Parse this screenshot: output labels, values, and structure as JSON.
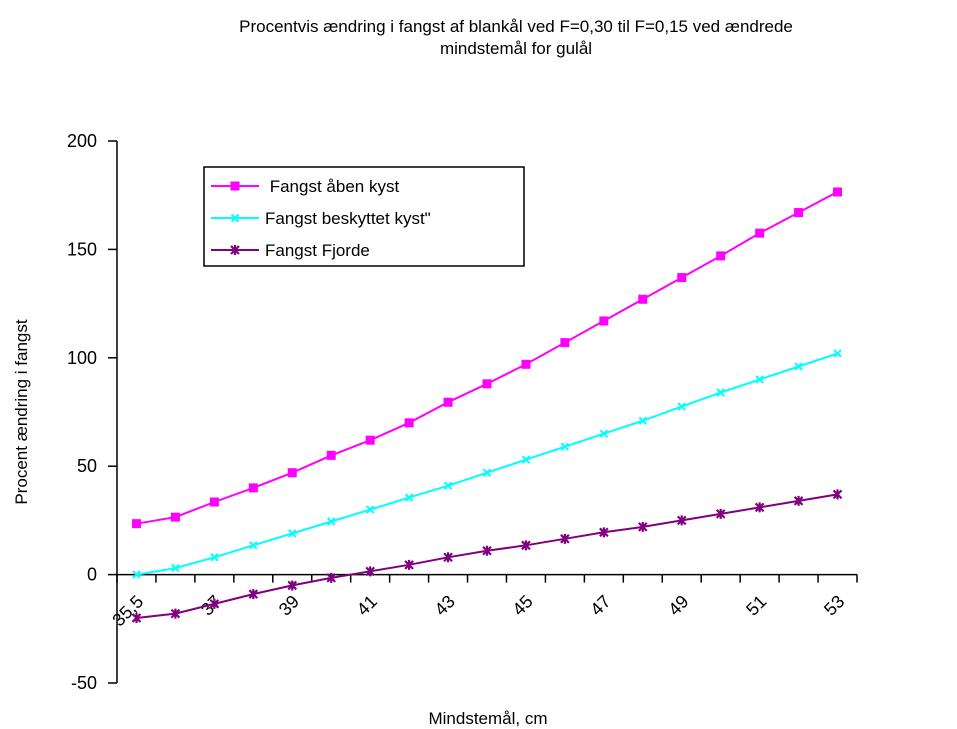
{
  "chart_data": {
    "type": "line",
    "title_lines": [
      "Procentvis ændring i fangst af blankål ved F=0,30 til F=0,15 ved ændrede",
      "mindstemål for gulål"
    ],
    "xlabel": "Mindstemål, cm",
    "ylabel": "Procent ændring i fangst",
    "ylim": [
      -50,
      200
    ],
    "yticks": [
      -50,
      0,
      50,
      100,
      150,
      200
    ],
    "x": [
      35.5,
      36,
      37,
      38,
      39,
      40,
      41,
      42,
      43,
      44,
      45,
      46,
      47,
      48,
      49,
      50,
      51,
      52,
      53
    ],
    "xtick_labels": [
      "35,5",
      "37",
      "39",
      "41",
      "43",
      "45",
      "47",
      "49",
      "51",
      "53"
    ],
    "legend_position": "top-left",
    "series": [
      {
        "name": " Fangst åben kyst",
        "color": "#ff00ff",
        "marker": "square",
        "values": [
          23.5,
          26.5,
          33.5,
          40,
          47,
          55,
          62,
          70,
          79.5,
          88,
          97,
          107,
          117,
          127,
          137,
          147,
          157.5,
          167,
          176.5
        ]
      },
      {
        "name": "Fangst beskyttet kyst\"",
        "color": "#00ffff",
        "marker": "x",
        "values": [
          0,
          3,
          8,
          13.5,
          19,
          24.5,
          30,
          35.5,
          41,
          47,
          53,
          59,
          65,
          71,
          77.5,
          84,
          90,
          96,
          102
        ]
      },
      {
        "name": "Fangst Fjorde",
        "color": "#800080",
        "marker": "star",
        "values": [
          -20,
          -18,
          -13.5,
          -9,
          -5,
          -1.5,
          1.5,
          4.5,
          8,
          11,
          13.5,
          16.5,
          19.5,
          22,
          25,
          28,
          31,
          34,
          37
        ]
      }
    ]
  }
}
